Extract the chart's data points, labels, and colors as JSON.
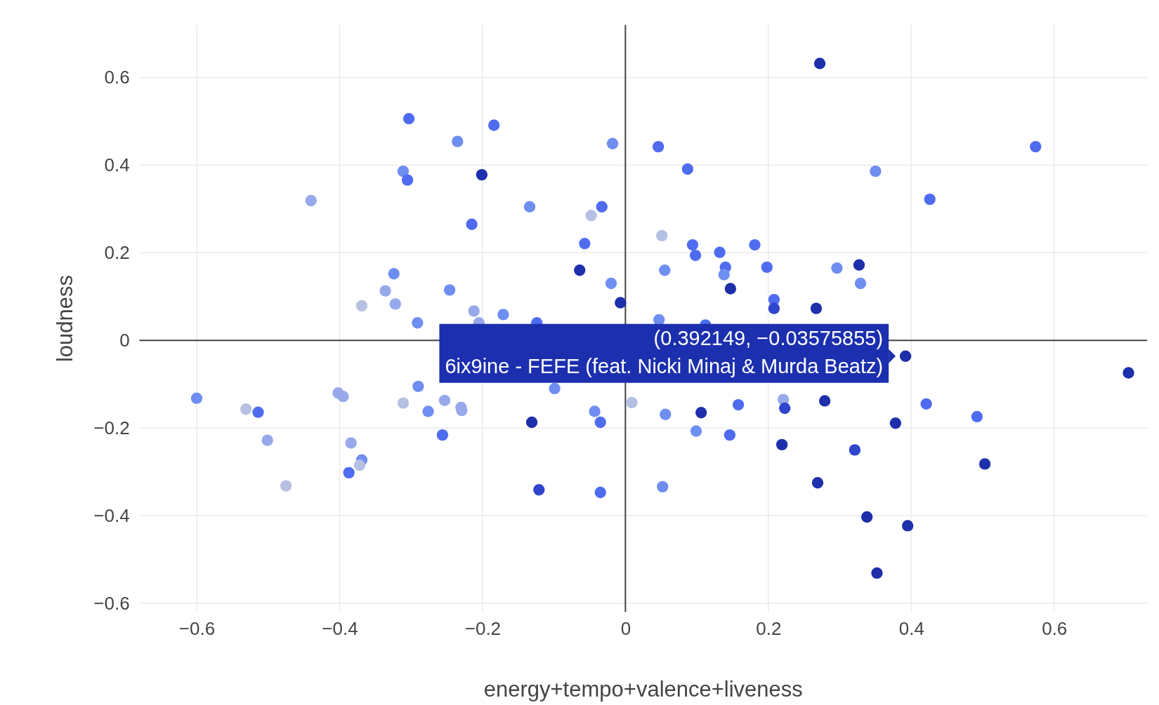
{
  "chart_data": {
    "type": "scatter",
    "xlabel": "energy+tempo+valence+liveness",
    "ylabel": "loudness",
    "xlim": [
      -0.68,
      0.73
    ],
    "ylim": [
      -0.62,
      0.72
    ],
    "xticks": [
      {
        "value": -0.6,
        "label": "−0.6"
      },
      {
        "value": -0.4,
        "label": "−0.4"
      },
      {
        "value": -0.2,
        "label": "−0.2"
      },
      0,
      0.2,
      0.4,
      0.6
    ],
    "yticks": [
      {
        "value": -0.6,
        "label": "−0.6"
      },
      {
        "value": -0.4,
        "label": "−0.4"
      },
      {
        "value": -0.2,
        "label": "−0.2"
      },
      0,
      0.2,
      0.4,
      0.6
    ],
    "grid": true,
    "marker": "circle",
    "annotations": [
      {
        "text": "(0.392149, −0.03575855)\n6ix9ine - FEFE (feat. Nicki Minaj & Murda Beatz)",
        "x": 0.392,
        "y": -0.036
      }
    ],
    "x": [
      0.272,
      -0.303,
      -0.184,
      -0.235,
      -0.018,
      0.046,
      0.574,
      -0.311,
      -0.305,
      -0.201,
      0.087,
      0.35,
      -0.44,
      -0.134,
      -0.033,
      -0.048,
      -0.215,
      0.426,
      -0.057,
      0.051,
      0.094,
      0.098,
      0.132,
      0.181,
      -0.064,
      0.055,
      0.14,
      0.138,
      0.198,
      0.296,
      0.327,
      -0.324,
      -0.336,
      -0.246,
      -0.02,
      0.147,
      0.329,
      -0.369,
      -0.322,
      -0.212,
      -0.171,
      -0.007,
      0.208,
      0.208,
      0.267,
      -0.291,
      -0.205,
      -0.124,
      0.047,
      0.112,
      0.392,
      0.704,
      -0.6,
      -0.531,
      -0.514,
      -0.402,
      -0.395,
      -0.311,
      -0.29,
      -0.253,
      -0.276,
      -0.229,
      -0.23,
      -0.099,
      -0.043,
      -0.035,
      -0.131,
      0.009,
      0.056,
      0.106,
      0.158,
      0.221,
      0.223,
      0.279,
      0.421,
      0.492,
      0.378,
      -0.256,
      0.099,
      0.146,
      0.219,
      0.321,
      0.503,
      -0.501,
      -0.384,
      -0.369,
      -0.372,
      -0.387,
      -0.475,
      -0.121,
      -0.035,
      0.052,
      0.269,
      0.338,
      0.395,
      0.352
    ],
    "values": [
      0.632,
      0.506,
      0.491,
      0.454,
      0.449,
      0.442,
      0.442,
      0.386,
      0.366,
      0.378,
      0.391,
      0.386,
      0.319,
      0.305,
      0.305,
      0.285,
      0.265,
      0.322,
      0.221,
      0.239,
      0.218,
      0.194,
      0.201,
      0.218,
      0.16,
      0.16,
      0.167,
      0.15,
      0.167,
      0.165,
      0.172,
      0.152,
      0.113,
      0.115,
      0.13,
      0.118,
      0.13,
      0.079,
      0.083,
      0.067,
      0.059,
      0.086,
      0.093,
      0.073,
      0.073,
      0.04,
      0.04,
      0.04,
      0.047,
      0.035,
      -0.036,
      -0.074,
      -0.132,
      -0.157,
      -0.164,
      -0.12,
      -0.128,
      -0.143,
      -0.105,
      -0.137,
      -0.162,
      -0.16,
      -0.153,
      -0.11,
      -0.162,
      -0.187,
      -0.187,
      -0.142,
      -0.169,
      -0.165,
      -0.147,
      -0.135,
      -0.155,
      -0.138,
      -0.145,
      -0.174,
      -0.189,
      -0.216,
      -0.207,
      -0.216,
      -0.238,
      -0.25,
      -0.282,
      -0.228,
      -0.234,
      -0.273,
      -0.285,
      -0.302,
      -0.332,
      -0.341,
      -0.347,
      -0.334,
      -0.325,
      -0.403,
      -0.423,
      -0.531
    ],
    "colors": [
      "#1d2fab",
      "#4f6cf0",
      "#4f6cf0",
      "#6f8ef2",
      "#6f8ef2",
      "#4f6cf0",
      "#4f6cf0",
      "#6f8ef2",
      "#4f6cf0",
      "#1d2fab",
      "#4f6cf0",
      "#6f8ef2",
      "#97a9ea",
      "#6f8ef2",
      "#4f6cf0",
      "#b5c0e3",
      "#4f6cf0",
      "#4f6cf0",
      "#4f6cf0",
      "#b5c0e3",
      "#4f6cf0",
      "#4f6cf0",
      "#4f6cf0",
      "#4f6cf0",
      "#1d2fab",
      "#6f8ef2",
      "#4f6cf0",
      "#6f8ef2",
      "#4f6cf0",
      "#6f8ef2",
      "#1d2fab",
      "#6f8ef2",
      "#97a9ea",
      "#6f8ef2",
      "#6f8ef2",
      "#1d2fab",
      "#6f8ef2",
      "#b5c0e3",
      "#97a9ea",
      "#97a9ea",
      "#6f8ef2",
      "#1d2fab",
      "#4f6cf0",
      "#2f45cc",
      "#1d2fab",
      "#6f8ef2",
      "#97a9ea",
      "#4f6cf0",
      "#6f8ef2",
      "#4f6cf0",
      "#1d2fab",
      "#1d2fab",
      "#6f8ef2",
      "#b5c0e3",
      "#4f6cf0",
      "#97a9ea",
      "#97a9ea",
      "#b5c0e3",
      "#6f8ef2",
      "#97a9ea",
      "#6f8ef2",
      "#97a9ea",
      "#97a9ea",
      "#6f8ef2",
      "#6f8ef2",
      "#4f6cf0",
      "#1d2fab",
      "#b5c0e3",
      "#6f8ef2",
      "#1d2fab",
      "#4f6cf0",
      "#97a9ea",
      "#2f45cc",
      "#1d2fab",
      "#4f6cf0",
      "#4f6cf0",
      "#1d2fab",
      "#4f6cf0",
      "#6f8ef2",
      "#4f6cf0",
      "#1d2fab",
      "#2f45cc",
      "#1d2fab",
      "#97a9ea",
      "#97a9ea",
      "#6f8ef2",
      "#b5c0e3",
      "#4f6cf0",
      "#b5c0e3",
      "#2f45cc",
      "#4f6cf0",
      "#6f8ef2",
      "#1d2fab",
      "#1d2fab",
      "#1d2fab",
      "#1d2fab"
    ]
  }
}
